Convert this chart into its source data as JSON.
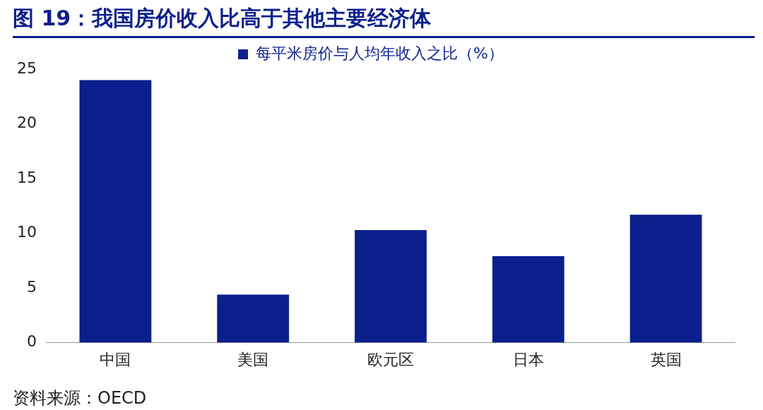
{
  "chart_data": {
    "type": "bar",
    "title": "图 19：我国房价收入比高于其他主要经济体",
    "categories": [
      "中国",
      "美国",
      "欧元区",
      "日本",
      "英国"
    ],
    "series": [
      {
        "name": "每平米房价与人均年收入之比（%）",
        "color": "#0b1f8c",
        "values": [
          24,
          4.4,
          10.3,
          7.9,
          11.7
        ]
      }
    ],
    "ylim": [
      0,
      25
    ],
    "yticks": [
      0,
      5,
      10,
      15,
      20,
      25
    ],
    "grid": false,
    "legend": "top",
    "annotations": [
      "资料来源：OECD"
    ]
  }
}
